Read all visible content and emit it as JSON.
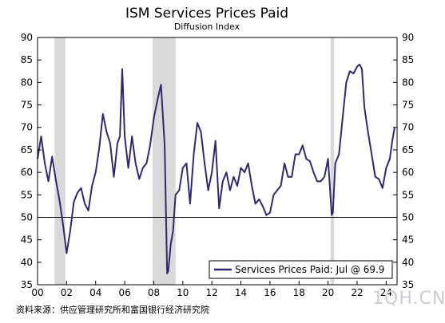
{
  "chart_data": {
    "type": "line",
    "title": "ISM Services Prices Paid",
    "subtitle": "Diffusion Index",
    "ylim": [
      35,
      90
    ],
    "y_ticks": [
      35,
      40,
      45,
      50,
      55,
      60,
      65,
      70,
      75,
      80,
      85,
      90
    ],
    "x_tick_labels": [
      "00",
      "02",
      "04",
      "06",
      "08",
      "10",
      "12",
      "14",
      "16",
      "18",
      "20",
      "22",
      "24"
    ],
    "x_range": [
      2000,
      2024.75
    ],
    "reference_line": 50,
    "recessions": [
      [
        2001.17,
        2001.92
      ],
      [
        2007.92,
        2009.5
      ],
      [
        2020.17,
        2020.42
      ]
    ],
    "legend_label": "Services Prices Paid: Jul @ 69.9",
    "colors": {
      "line": "#2e2a6e",
      "recession": "#d9d9d9",
      "axis": "#000000"
    },
    "series": [
      {
        "x": [
          2000.0,
          2000.25,
          2000.5,
          2000.75,
          2001.0,
          2001.25,
          2001.5,
          2001.75,
          2002.0,
          2002.25,
          2002.5,
          2002.75,
          2003.0,
          2003.25,
          2003.5,
          2003.75,
          2004.0,
          2004.25,
          2004.5,
          2004.75,
          2005.0,
          2005.25,
          2005.5,
          2005.67,
          2005.83,
          2006.0,
          2006.25,
          2006.5,
          2006.75,
          2007.0,
          2007.25,
          2007.5,
          2007.75,
          2008.0,
          2008.25,
          2008.5,
          2008.75,
          2008.92,
          2009.0,
          2009.17,
          2009.33,
          2009.5,
          2009.75,
          2010.0,
          2010.25,
          2010.5,
          2010.75,
          2011.0,
          2011.25,
          2011.5,
          2011.75,
          2012.0,
          2012.25,
          2012.5,
          2012.75,
          2013.0,
          2013.25,
          2013.5,
          2013.75,
          2014.0,
          2014.25,
          2014.5,
          2014.75,
          2015.0,
          2015.25,
          2015.5,
          2015.75,
          2016.0,
          2016.25,
          2016.5,
          2016.75,
          2017.0,
          2017.25,
          2017.5,
          2017.75,
          2018.0,
          2018.25,
          2018.5,
          2018.75,
          2019.0,
          2019.25,
          2019.5,
          2019.75,
          2020.0,
          2020.25,
          2020.33,
          2020.5,
          2020.75,
          2021.0,
          2021.25,
          2021.5,
          2021.75,
          2022.0,
          2022.17,
          2022.33,
          2022.5,
          2022.75,
          2023.0,
          2023.25,
          2023.5,
          2023.75,
          2024.0,
          2024.25,
          2024.42,
          2024.58
        ],
        "values": [
          63.0,
          68.0,
          62.0,
          58.0,
          63.5,
          58.5,
          54.0,
          48.5,
          42.0,
          47.0,
          53.5,
          55.5,
          56.5,
          53.0,
          51.5,
          57.0,
          60.0,
          65.5,
          73.0,
          69.0,
          66.5,
          59.0,
          66.5,
          68.0,
          83.0,
          68.0,
          61.0,
          68.0,
          62.0,
          58.5,
          61.0,
          62.0,
          66.0,
          72.0,
          76.0,
          79.5,
          66.0,
          37.5,
          38.0,
          44.0,
          47.0,
          55.0,
          56.0,
          61.0,
          62.0,
          53.0,
          64.0,
          71.0,
          69.0,
          62.0,
          56.0,
          60.0,
          67.0,
          52.0,
          58.0,
          60.0,
          56.0,
          59.0,
          57.0,
          61.0,
          60.0,
          62.0,
          57.0,
          53.0,
          54.0,
          52.5,
          50.5,
          51.0,
          55.0,
          56.0,
          57.0,
          62.0,
          59.0,
          59.0,
          64.0,
          64.0,
          66.0,
          63.0,
          62.5,
          60.0,
          58.0,
          58.0,
          59.0,
          63.0,
          50.5,
          51.0,
          62.0,
          64.0,
          72.0,
          80.0,
          82.5,
          82.0,
          83.5,
          84.0,
          83.0,
          74.5,
          69.0,
          64.0,
          59.0,
          58.5,
          56.5,
          61.0,
          63.0,
          67.0,
          69.9
        ]
      }
    ]
  },
  "source_note": "资料来源：供应管理研究所和富国银行经济研究院",
  "watermark": "1QH.CN"
}
